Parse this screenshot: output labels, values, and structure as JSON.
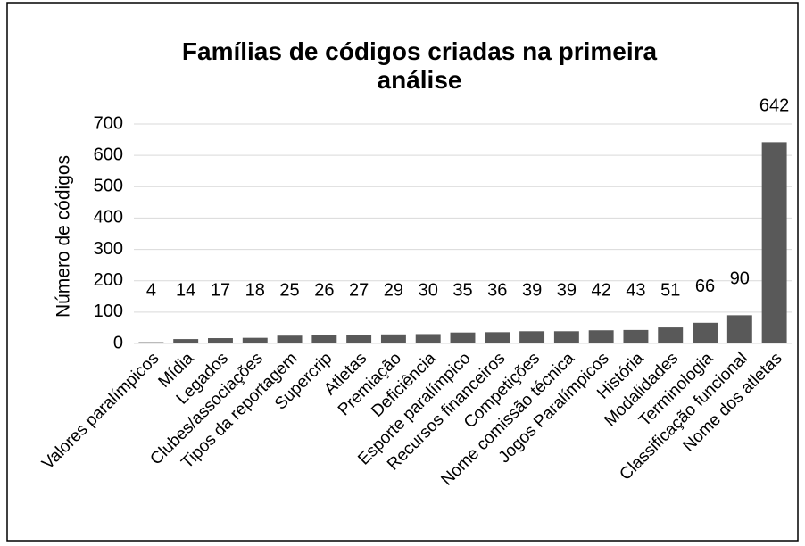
{
  "chart_data": {
    "type": "bar",
    "title": "Famílias de códigos criadas na primeira análise",
    "y_label": "Número de códigos",
    "categories": [
      "Valores paralímpicos",
      "Mídia",
      "Legados",
      "Clubes/associações",
      "Tipos da reportagem",
      "Supercrip",
      "Atletas",
      "Premiação",
      "Deficiência",
      "Esporte paralímpico",
      "Recursos financeiros",
      "Competições",
      "Nome comissão técnica",
      "Jogos Paralímpicos",
      "História",
      "Modalidades",
      "Terminologia",
      "Classificação funcional",
      "Nome dos atletas"
    ],
    "values": [
      4,
      14,
      17,
      18,
      25,
      26,
      27,
      29,
      30,
      35,
      36,
      39,
      39,
      42,
      43,
      51,
      66,
      90,
      642
    ],
    "color": "#595959",
    "ylim": [
      0,
      700
    ],
    "yticks": [
      0,
      100,
      200,
      300,
      400,
      500,
      600,
      700
    ],
    "grid": true
  }
}
